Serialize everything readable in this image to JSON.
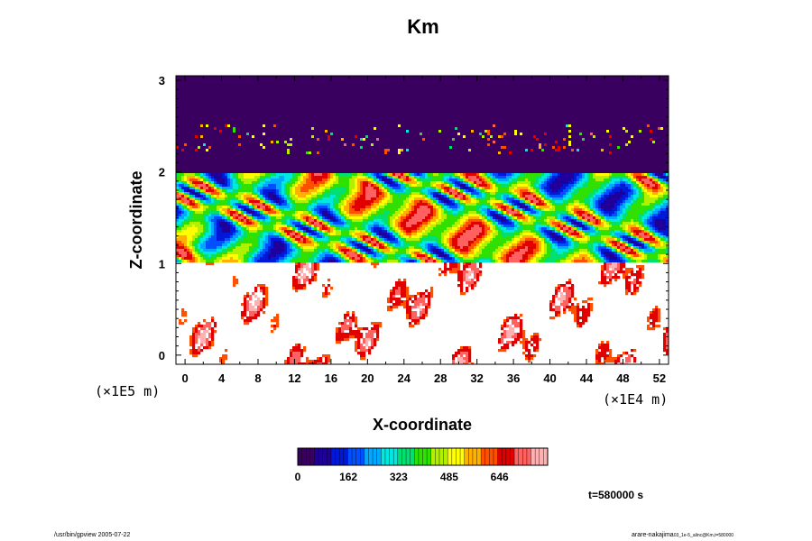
{
  "chart_data": {
    "type": "heatmap",
    "title": "Km",
    "xlabel": "X-coordinate",
    "ylabel": "Z-coordinate",
    "x_unit": "(×1E4 m)",
    "y_unit": "(×1E5 m)",
    "x_ticks": [
      "0",
      "4",
      "8",
      "12",
      "16",
      "20",
      "24",
      "28",
      "32",
      "36",
      "40",
      "44",
      "48",
      "52"
    ],
    "y_ticks": [
      "0",
      "1",
      "2",
      "3"
    ],
    "xlim": [
      -1,
      53
    ],
    "ylim": [
      -0.1,
      3.05
    ],
    "colorbar": {
      "ticks": [
        "0",
        "162",
        "323",
        "485",
        "646"
      ],
      "range": [
        0,
        800
      ],
      "colors": [
        "#3a0060",
        "#20009a",
        "#0018d8",
        "#0050ff",
        "#00a8ff",
        "#00e8e0",
        "#00e070",
        "#30e000",
        "#b0f000",
        "#ffff00",
        "#ffb000",
        "#ff5000",
        "#e00000",
        "#ff6060",
        "#ffb0b0"
      ]
    },
    "field_regions": [
      {
        "z_range": [
          2.0,
          3.05
        ],
        "description": "uniform low value with scattered small spots near z=2.2-2.5",
        "value": 50
      },
      {
        "z_range": [
          1.0,
          2.0
        ],
        "description": "turbulent layer, full range of values",
        "value_range": [
          0,
          800
        ]
      },
      {
        "z_range": [
          -0.1,
          1.0
        ],
        "description": "mostly zero with scattered high-value patches",
        "value_range": [
          0,
          700
        ]
      }
    ],
    "time_label": "t=580000 s",
    "footer_left": "/usr/bin/gpview 2005-07-22",
    "footer_right_main": "arare-nakajima",
    "footer_right_sub": "03_1e-5_alinc@Km,t=580000"
  }
}
